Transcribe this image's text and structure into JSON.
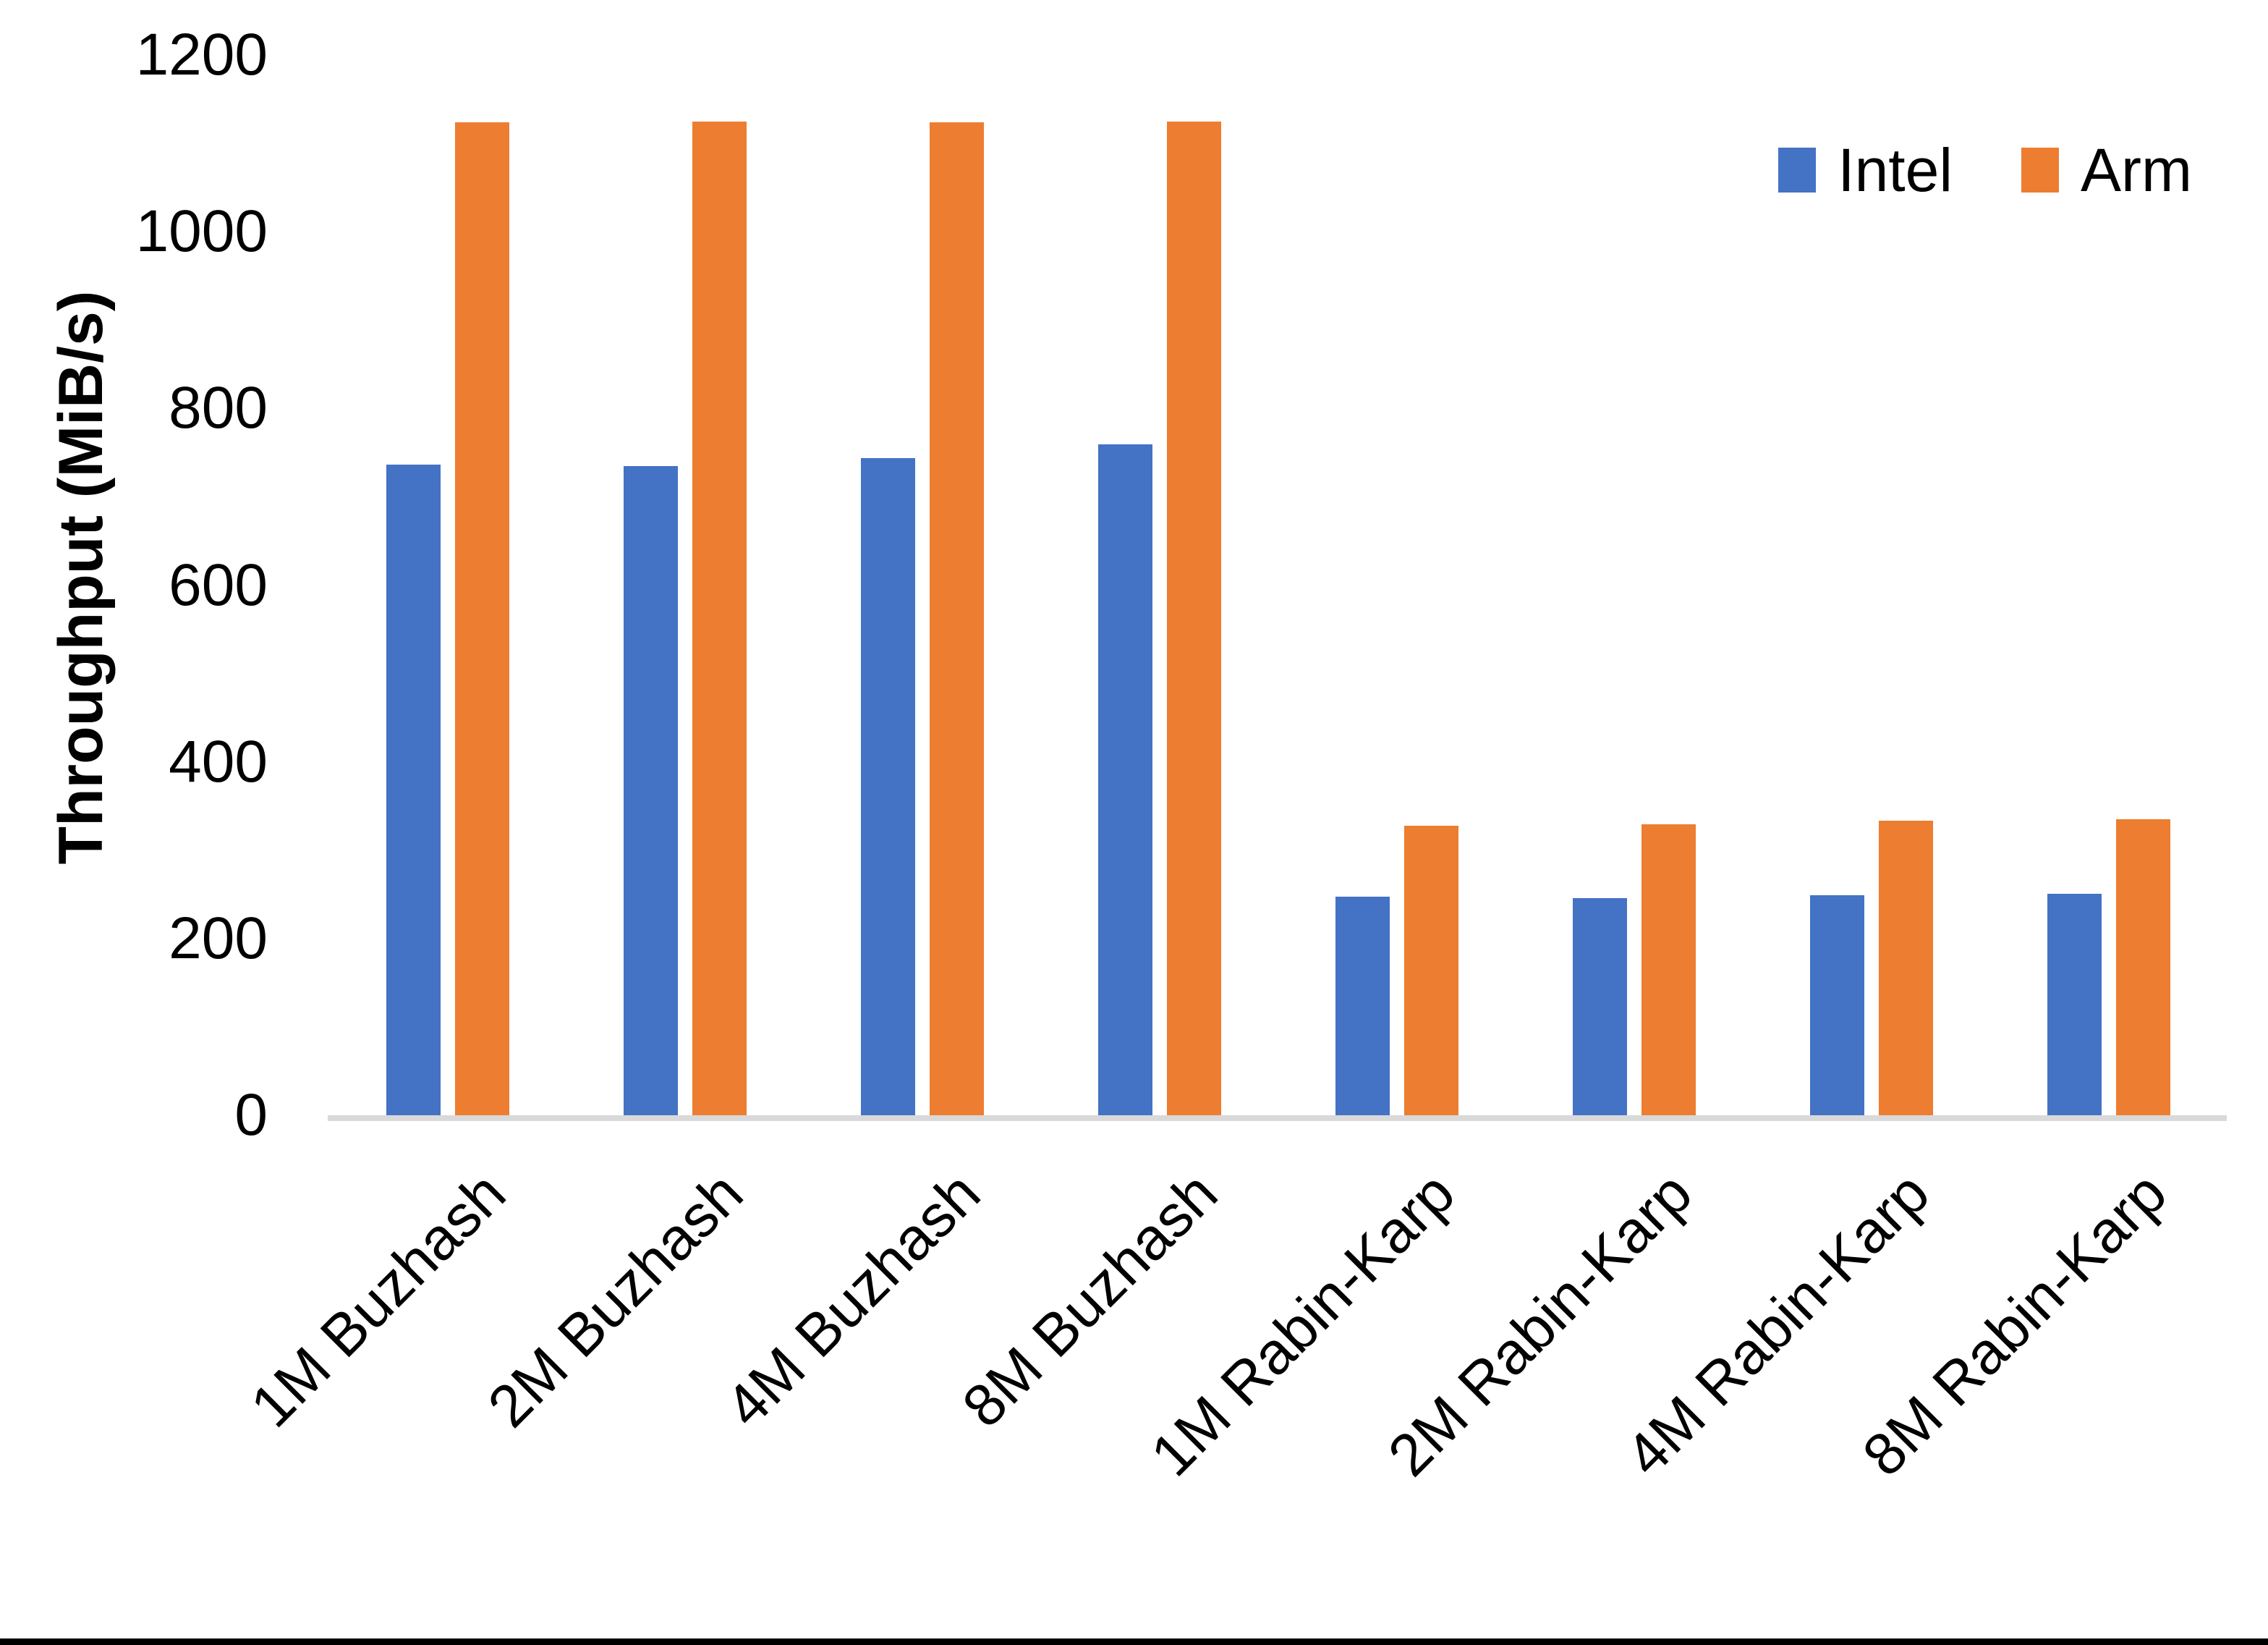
{
  "chart_data": {
    "type": "bar",
    "title": "",
    "xlabel": "",
    "ylabel": "Throughput (MiB/s)",
    "ylim": [
      0,
      1200
    ],
    "yticks": [
      0,
      200,
      400,
      600,
      800,
      1000,
      1200
    ],
    "grid": false,
    "legend_position": "top-right",
    "categories": [
      "1M Buzhash",
      "2M Buzhash",
      "4M Buzhash",
      "8M Buzhash",
      "1M Rabin-Karp",
      "2M Rabin-Karp",
      "4M Rabin-Karp",
      "8M Rabin-Karp"
    ],
    "series": [
      {
        "name": "Intel",
        "color": "#4472C4",
        "values": [
          736,
          735,
          744,
          759,
          247,
          246,
          249,
          251
        ]
      },
      {
        "name": "Arm",
        "color": "#ED7D31",
        "values": [
          1124,
          1125,
          1124,
          1125,
          328,
          329,
          333,
          335
        ]
      }
    ]
  },
  "colors": {
    "axis_line": "#D9D9D9",
    "text": "#000000",
    "background": "#FFFFFF",
    "bottom_border": "#000000"
  }
}
